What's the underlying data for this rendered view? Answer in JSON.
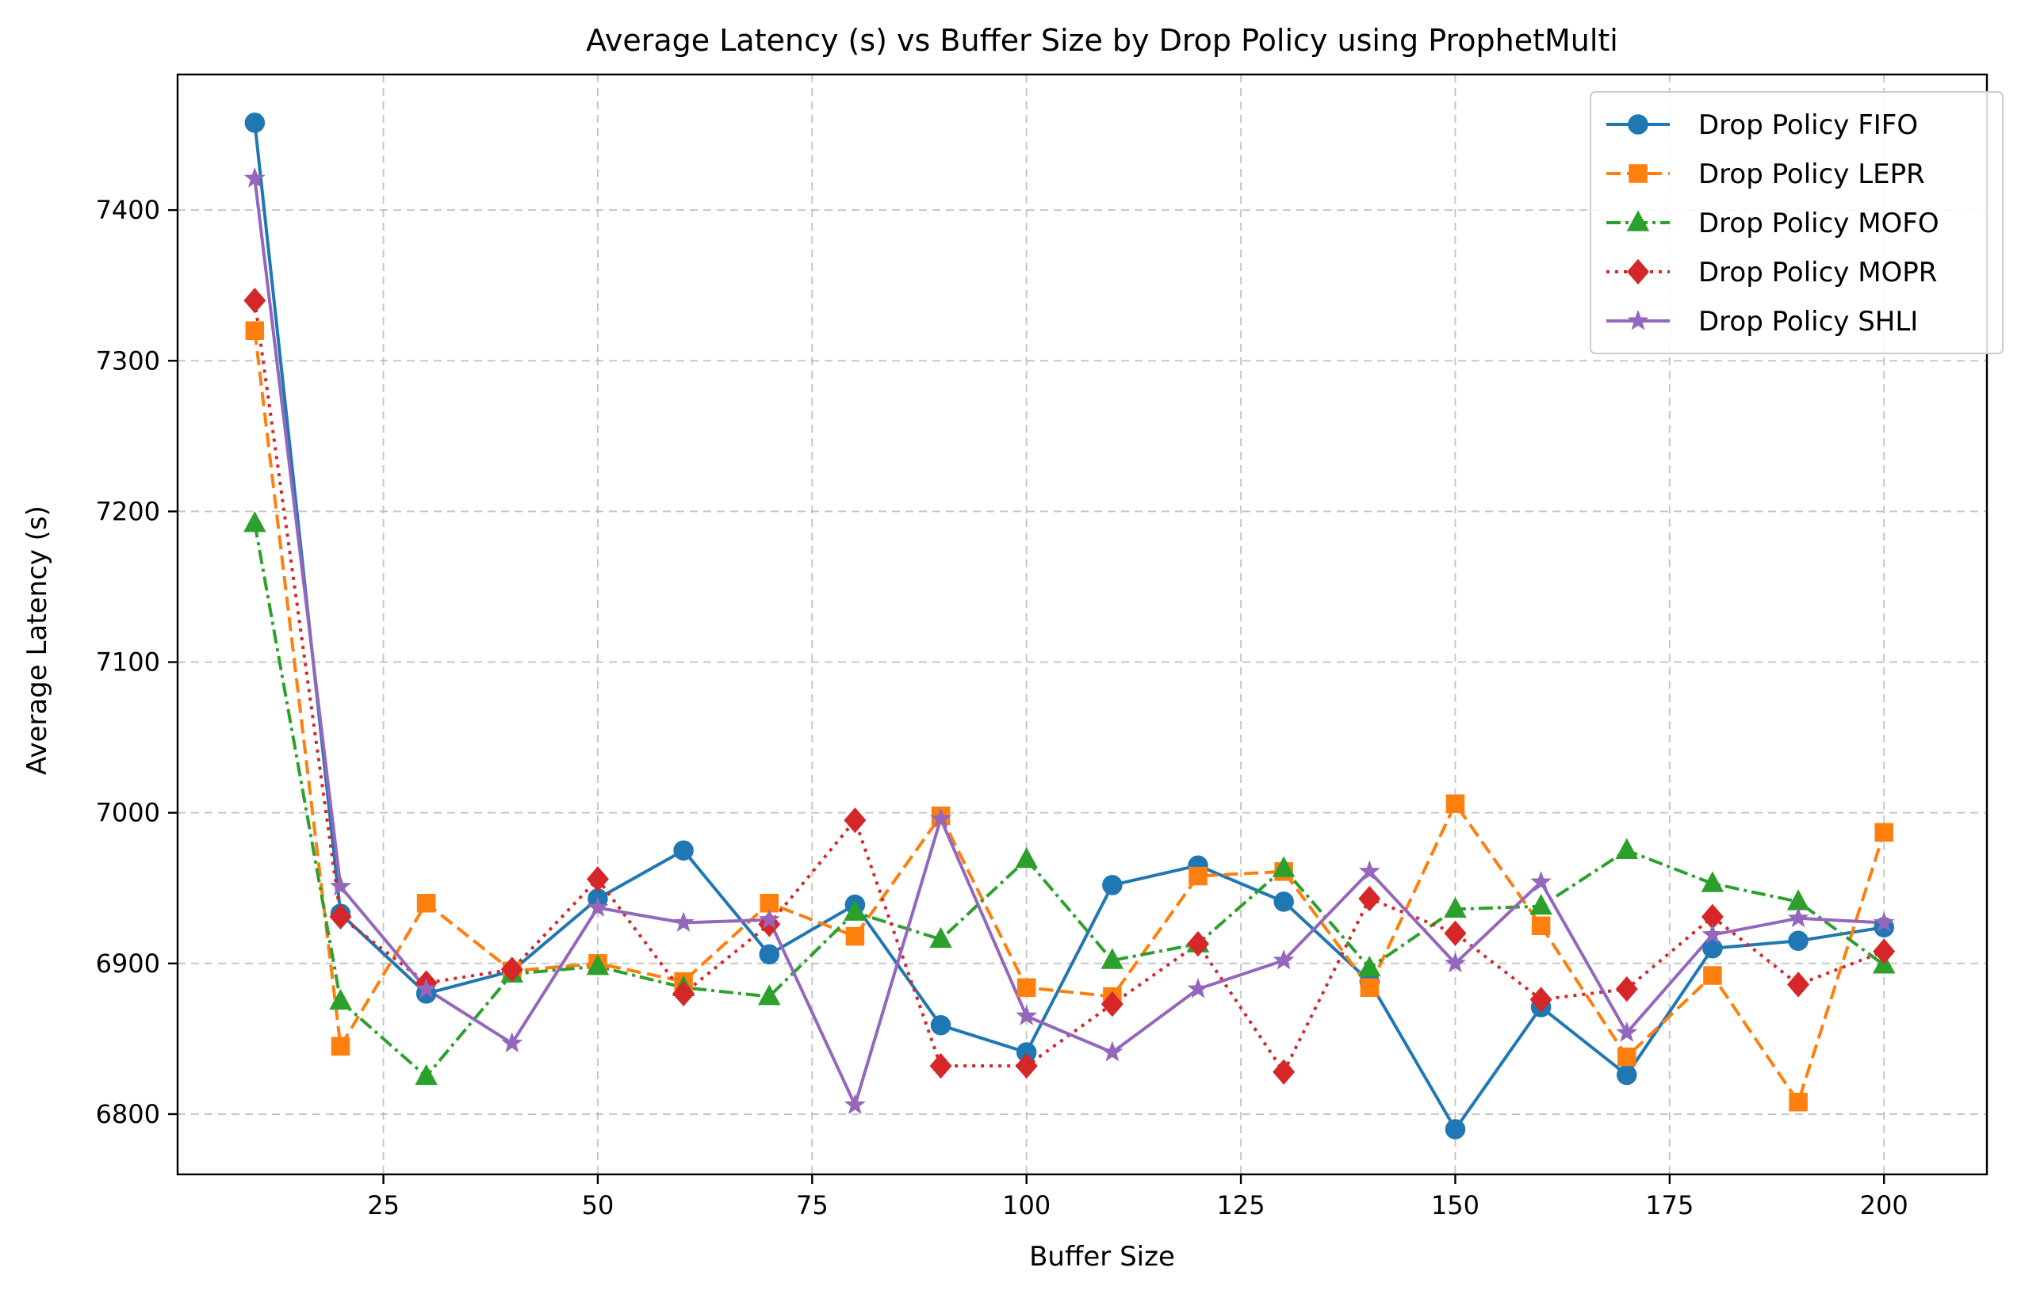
{
  "chart_data": {
    "type": "line",
    "title": "Average Latency (s) vs Buffer Size by Drop Policy using ProphetMulti",
    "xlabel": "Buffer Size",
    "ylabel": "Average Latency (s)",
    "xlim": [
      1,
      212
    ],
    "ylim": [
      6760,
      7490
    ],
    "xticks": [
      25,
      50,
      75,
      100,
      125,
      150,
      175,
      200
    ],
    "yticks": [
      6800,
      6900,
      7000,
      7100,
      7200,
      7300,
      7400
    ],
    "grid": true,
    "legend_position": "top-right",
    "x": [
      10,
      20,
      30,
      40,
      50,
      60,
      70,
      80,
      90,
      100,
      110,
      120,
      130,
      140,
      150,
      160,
      170,
      180,
      190,
      200
    ],
    "series": [
      {
        "name": "Drop Policy FIFO",
        "color": "#1f77b4",
        "marker": "circle",
        "dash": "solid",
        "values": [
          7458,
          6933,
          6880,
          6895,
          6943,
          6975,
          6906,
          6939,
          6859,
          6841,
          6952,
          6965,
          6941,
          6888,
          6790,
          6871,
          6826,
          6910,
          6915,
          6924
        ]
      },
      {
        "name": "Drop Policy LEPR",
        "color": "#ff7f0e",
        "marker": "square",
        "dash": "dashed",
        "values": [
          7320,
          6845,
          6940,
          6895,
          6900,
          6888,
          6940,
          6918,
          6998,
          6884,
          6878,
          6958,
          6961,
          6884,
          7006,
          6925,
          6838,
          6892,
          6808,
          6987
        ]
      },
      {
        "name": "Drop Policy MOFO",
        "color": "#2ca02c",
        "marker": "triangle",
        "dash": "dashdot",
        "values": [
          7192,
          6875,
          6825,
          6893,
          6898,
          6884,
          6878,
          6934,
          6916,
          6969,
          6902,
          6913,
          6963,
          6897,
          6936,
          6938,
          6975,
          6953,
          6941,
          6899
        ]
      },
      {
        "name": "Drop Policy MOPR",
        "color": "#d62728",
        "marker": "diamond",
        "dash": "dotted",
        "values": [
          7340,
          6931,
          6887,
          6896,
          6956,
          6880,
          6926,
          6995,
          6832,
          6832,
          6873,
          6913,
          6828,
          6943,
          6920,
          6876,
          6883,
          6931,
          6886,
          6908
        ]
      },
      {
        "name": "Drop Policy SHLI",
        "color": "#9467bd",
        "marker": "star",
        "dash": "solid",
        "values": [
          7421,
          6951,
          6883,
          6847,
          6937,
          6927,
          6929,
          6806,
          6996,
          6865,
          6841,
          6883,
          6902,
          6961,
          6900,
          6954,
          6854,
          6919,
          6930,
          6927
        ]
      }
    ]
  }
}
